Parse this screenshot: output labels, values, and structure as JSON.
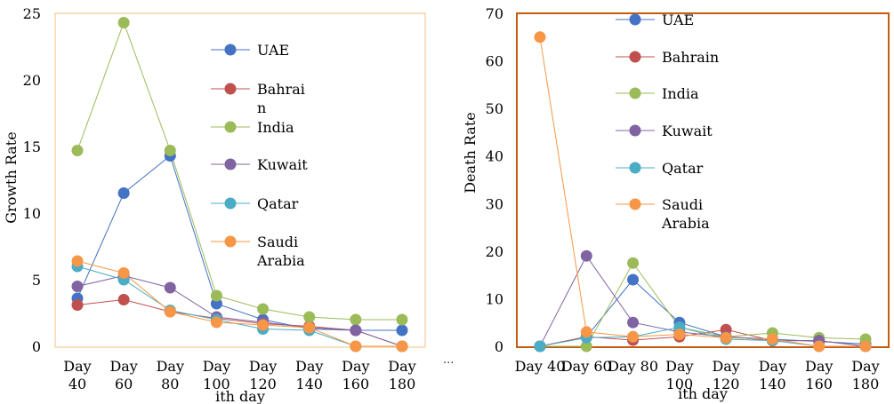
{
  "chart_data": [
    {
      "type": "line",
      "title": "",
      "xlabel": "ith day",
      "ylabel": "Growth Rate",
      "categories": [
        "Day 40",
        "Day 60",
        "Day 80",
        "Day 100",
        "Day 120",
        "Day 140",
        "Day 160",
        "Day 180"
      ],
      "category_lines": [
        [
          "Day",
          "40"
        ],
        [
          "Day",
          "60"
        ],
        [
          "Day",
          "80"
        ],
        [
          "Day",
          "100"
        ],
        [
          "Day",
          "120"
        ],
        [
          "Day",
          "140"
        ],
        [
          "Day",
          "160"
        ],
        [
          "Day",
          "180"
        ]
      ],
      "ylim": [
        0,
        25
      ],
      "yticks": [
        0,
        5,
        10,
        15,
        20,
        25
      ],
      "grid": false,
      "legend_position": "right",
      "series": [
        {
          "name": "UAE",
          "name_lines": [
            "UAE"
          ],
          "color": "#4472C4",
          "values": [
            3.6,
            11.5,
            14.3,
            3.2,
            2.0,
            1.3,
            1.2,
            1.2
          ]
        },
        {
          "name": "Bahrain",
          "name_lines": [
            "Bahrai",
            "n"
          ],
          "color": "#C0504D",
          "values": [
            3.1,
            3.5,
            2.6,
            2.1,
            1.7,
            1.5,
            1.2,
            0.0
          ]
        },
        {
          "name": "India",
          "name_lines": [
            "India"
          ],
          "color": "#9BBB59",
          "values": [
            14.7,
            24.3,
            14.7,
            3.8,
            2.8,
            2.2,
            2.0,
            2.0
          ]
        },
        {
          "name": "Kuwait",
          "name_lines": [
            "Kuwait"
          ],
          "color": "#8064A2",
          "values": [
            4.5,
            5.3,
            4.4,
            2.2,
            1.8,
            1.4,
            1.2,
            0.0
          ]
        },
        {
          "name": "Qatar",
          "name_lines": [
            "Qatar"
          ],
          "color": "#4BACC6",
          "values": [
            6.0,
            5.0,
            2.7,
            2.0,
            1.3,
            1.2,
            0.0,
            0.0
          ]
        },
        {
          "name": "Saudi Arabia",
          "name_lines": [
            "Saudi",
            "Arabia"
          ],
          "color": "#F79646",
          "values": [
            6.4,
            5.5,
            2.6,
            1.8,
            1.6,
            1.4,
            0.0,
            0.0
          ]
        }
      ]
    },
    {
      "type": "line",
      "title": "",
      "xlabel": "ith day",
      "ylabel": "Death Rate",
      "categories": [
        "Day 40",
        "Day 60",
        "Day 80",
        "Day 100",
        "Day 120",
        "Day 140",
        "Day 160",
        "Day 180"
      ],
      "category_lines": [
        [
          "Day 40"
        ],
        [
          "Day 60"
        ],
        [
          "Day 80"
        ],
        [
          "Day",
          "100"
        ],
        [
          "Day",
          "120"
        ],
        [
          "Day",
          "140"
        ],
        [
          "Day",
          "160"
        ],
        [
          "Day",
          "180"
        ]
      ],
      "ylim": [
        0,
        70
      ],
      "yticks": [
        0,
        10,
        20,
        30,
        40,
        50,
        60,
        70
      ],
      "grid": false,
      "legend_position": "top-right",
      "series": [
        {
          "name": "UAE",
          "name_lines": [
            "UAE"
          ],
          "color": "#4472C4",
          "values": [
            0,
            2,
            14,
            5,
            2,
            1.5,
            1,
            0.5
          ]
        },
        {
          "name": "Bahrain",
          "name_lines": [
            "Bahrain"
          ],
          "color": "#C0504D",
          "values": [
            0,
            2,
            1.3,
            2,
            3.5,
            1.2,
            1.2,
            0
          ]
        },
        {
          "name": "India",
          "name_lines": [
            "India"
          ],
          "color": "#9BBB59",
          "values": [
            0,
            0,
            17.5,
            4,
            2,
            2.8,
            1.8,
            1.5
          ]
        },
        {
          "name": "Kuwait",
          "name_lines": [
            "Kuwait"
          ],
          "color": "#8064A2",
          "values": [
            0,
            19,
            5,
            3,
            2,
            1.2,
            1.2,
            0
          ]
        },
        {
          "name": "Qatar",
          "name_lines": [
            "Qatar"
          ],
          "color": "#4BACC6",
          "values": [
            0,
            1.8,
            2,
            4,
            1.5,
            1.2,
            0,
            0
          ]
        },
        {
          "name": "Saudi Arabia",
          "name_lines": [
            "Saudi",
            "Arabia"
          ],
          "color": "#F79646",
          "values": [
            65,
            3,
            2,
            2.5,
            1.8,
            1.5,
            0,
            0
          ]
        }
      ]
    }
  ],
  "separator": "..."
}
